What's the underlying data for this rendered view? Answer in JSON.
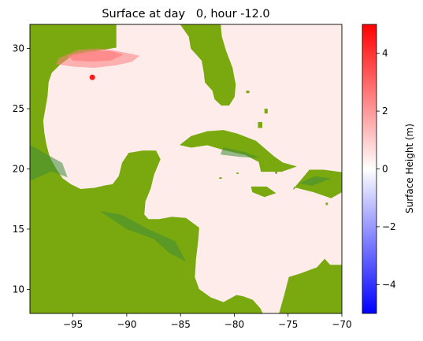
{
  "chart_data": {
    "type": "heatmap",
    "title": "Surface at day   0, hour -12.0",
    "xlabel": "",
    "ylabel": "",
    "xlim": [
      -99,
      -70
    ],
    "ylim": [
      8,
      32
    ],
    "xticks": [
      -95,
      -90,
      -85,
      -80,
      -75,
      -70
    ],
    "yticks": [
      10,
      15,
      20,
      25,
      30
    ],
    "xtick_labels": [
      "−95",
      "−90",
      "−85",
      "−80",
      "−75",
      "−70"
    ],
    "ytick_labels": [
      "10",
      "15",
      "20",
      "25",
      "30"
    ],
    "colorbar": {
      "label": "Surface Height (m)",
      "range": [
        -5,
        5
      ],
      "ticks": [
        -4,
        -2,
        0,
        2,
        4
      ],
      "tick_labels": [
        "−4",
        "−2",
        "0",
        "2",
        "4"
      ],
      "colors": {
        "low": "#0000ff",
        "mid": "#ffffff",
        "high": "#ff0000"
      }
    },
    "ocean_color": "#fdecea",
    "land_color": "#7aa90f",
    "land_dark_color": "#3f8d3a",
    "surge_max_value": 2.5,
    "marker": {
      "lon": -93.2,
      "lat": 27.6,
      "color": "#ff1a1a"
    }
  }
}
